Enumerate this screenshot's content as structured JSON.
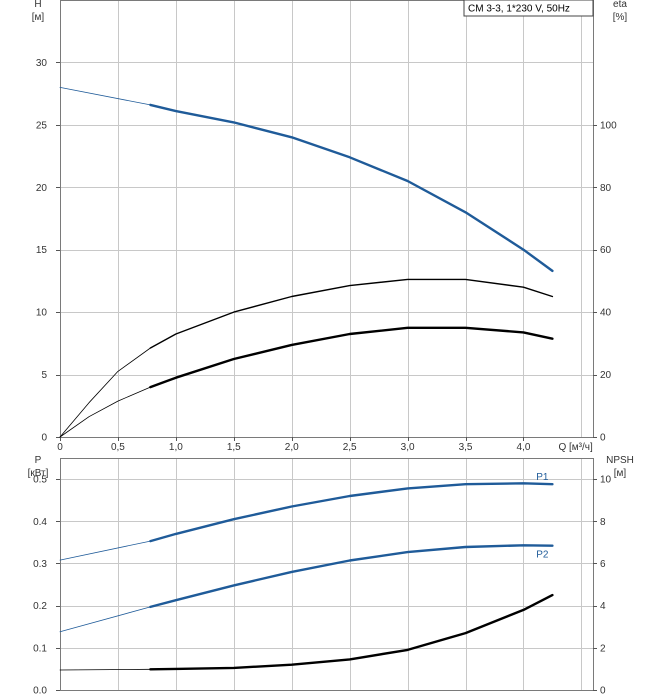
{
  "legend_box": "CM 3-3, 1*230 V, 50Hz",
  "colors": {
    "blue": "#1f5b99",
    "black": "#000000",
    "grid": "#c8c8c8"
  },
  "chart_data": [
    {
      "type": "line",
      "xlim": [
        0,
        4.6
      ],
      "ylim_left": [
        0,
        35
      ],
      "ylim_right": [
        0,
        140
      ],
      "left_axis": {
        "label_line1": "H",
        "label_line2": "[м]",
        "ticks": [
          "0",
          "5",
          "10",
          "15",
          "20",
          "25",
          "30"
        ]
      },
      "right_axis": {
        "label_line1": "eta",
        "label_line2": "[%]",
        "ticks": [
          "0",
          "20",
          "40",
          "60",
          "80",
          "100"
        ]
      },
      "x_axis": {
        "ticks": [
          "0",
          "0,5",
          "1,0",
          "1,5",
          "2,0",
          "2,5",
          "3,0",
          "3,5",
          "4,0"
        ],
        "label": "Q [м³/ч]"
      },
      "grid": true,
      "series": [
        {
          "color": "#1f5b99",
          "axis": "left",
          "x": [
            0,
            0.78,
            1.0,
            1.5,
            2.0,
            2.5,
            3.0,
            3.5,
            4.0,
            4.25
          ],
          "y": [
            28.0,
            26.6,
            26.1,
            25.2,
            24.0,
            22.4,
            20.5,
            18.0,
            15.0,
            13.3
          ]
        },
        {
          "color": "#000000",
          "axis": "right",
          "x": [
            0,
            0.25,
            0.5,
            0.78,
            1.0,
            1.5,
            2.0,
            2.5,
            3.0,
            3.5,
            4.0,
            4.25
          ],
          "y": [
            0,
            11,
            21,
            28.5,
            33,
            40,
            45,
            48.5,
            50.5,
            50.5,
            48,
            45
          ]
        },
        {
          "color": "#000000",
          "axis": "right",
          "x": [
            0,
            0.25,
            0.5,
            0.78,
            1.0,
            1.5,
            2.0,
            2.5,
            3.0,
            3.5,
            4.0,
            4.25
          ],
          "y": [
            0,
            6.5,
            11.5,
            16,
            19,
            25,
            29.5,
            33,
            35,
            35,
            33.5,
            31.5
          ]
        }
      ]
    },
    {
      "type": "line",
      "xlim": [
        0,
        4.6
      ],
      "ylim_left": [
        0,
        0.55
      ],
      "ylim_right": [
        0,
        11
      ],
      "left_axis": {
        "label_line1": "P",
        "label_line2": "[кВт]",
        "ticks": [
          "0.0",
          "0.1",
          "0.2",
          "0.3",
          "0.4",
          "0.5"
        ]
      },
      "right_axis": {
        "label_line1": "NPSH",
        "label_line2": "[м]",
        "ticks": [
          "0",
          "2",
          "4",
          "6",
          "8",
          "10"
        ]
      },
      "grid": true,
      "series": [
        {
          "name": "P1",
          "color": "#1f5b99",
          "axis": "left",
          "x": [
            0,
            0.78,
            1.0,
            1.5,
            2.0,
            2.5,
            3.0,
            3.5,
            4.0,
            4.25
          ],
          "y": [
            0.308,
            0.353,
            0.37,
            0.405,
            0.435,
            0.46,
            0.478,
            0.488,
            0.49,
            0.488
          ]
        },
        {
          "name": "P2",
          "color": "#1f5b99",
          "axis": "left",
          "x": [
            0,
            0.78,
            1.0,
            1.5,
            2.0,
            2.5,
            3.0,
            3.5,
            4.0,
            4.25
          ],
          "y": [
            0.138,
            0.197,
            0.213,
            0.248,
            0.28,
            0.307,
            0.327,
            0.339,
            0.343,
            0.342
          ]
        },
        {
          "color": "#000000",
          "axis": "right",
          "x": [
            0,
            0.78,
            1.0,
            1.5,
            2.0,
            2.5,
            3.0,
            3.5,
            4.0,
            4.25
          ],
          "y": [
            0.95,
            0.98,
            1.0,
            1.05,
            1.2,
            1.45,
            1.9,
            2.7,
            3.8,
            4.5
          ]
        }
      ]
    }
  ]
}
